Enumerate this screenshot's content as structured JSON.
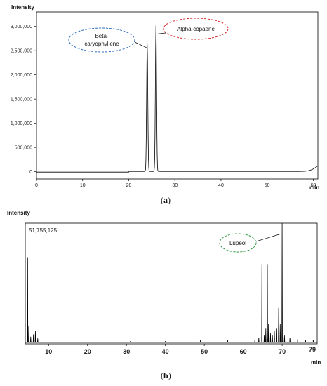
{
  "chart_data": [
    {
      "type": "line",
      "panel": "a",
      "caption_letter": "a",
      "ylabel": "Intensity",
      "xlabel": "min",
      "xlim": [
        0,
        61
      ],
      "ylim": [
        -150000,
        3300000
      ],
      "x_ticks": [
        0,
        10,
        20,
        30,
        40,
        50,
        60
      ],
      "y_ticks": [
        0,
        500000,
        1000000,
        1500000,
        2000000,
        2500000,
        3000000
      ],
      "y_tick_labels": [
        "0",
        "500,000",
        "1,000,000",
        "1,500,000",
        "2,000,000",
        "2,500,000",
        "3,000,000"
      ],
      "peaks": [
        {
          "time": 24.0,
          "intensity": 2650000
        },
        {
          "time": 25.9,
          "intensity": 3020000
        }
      ],
      "baseline": 0,
      "annotations": [
        {
          "text_lines": [
            "Beta-",
            "caryophyllene"
          ],
          "peak_index": 0,
          "color": "#2f6fbf"
        },
        {
          "text_lines": [
            "Alpha-copaene"
          ],
          "peak_index": 1,
          "color": "#d62a2a"
        }
      ]
    },
    {
      "type": "line",
      "panel": "b",
      "caption_letter": "b",
      "ylabel": "Intensity",
      "xlabel": "min",
      "max_label": "51,755,125",
      "xlim": [
        4,
        79
      ],
      "ylim": [
        0,
        51755125
      ],
      "x_ticks": [
        10,
        20,
        30,
        40,
        50,
        60,
        70,
        79
      ],
      "peaks": [
        {
          "time": 4.6,
          "intensity": 37000000
        },
        {
          "time": 4.9,
          "intensity": 7000000
        },
        {
          "time": 5.4,
          "intensity": 2500000
        },
        {
          "time": 6.1,
          "intensity": 3500000
        },
        {
          "time": 6.6,
          "intensity": 5000000
        },
        {
          "time": 7.2,
          "intensity": 1800000
        },
        {
          "time": 31.0,
          "intensity": 500000
        },
        {
          "time": 40.0,
          "intensity": 600000
        },
        {
          "time": 49.0,
          "intensity": 900000
        },
        {
          "time": 56.0,
          "intensity": 1000000
        },
        {
          "time": 63.0,
          "intensity": 1200000
        },
        {
          "time": 64.0,
          "intensity": 2000000
        },
        {
          "time": 64.8,
          "intensity": 34000000
        },
        {
          "time": 65.4,
          "intensity": 3000000
        },
        {
          "time": 65.8,
          "intensity": 6000000
        },
        {
          "time": 66.2,
          "intensity": 34000000
        },
        {
          "time": 66.5,
          "intensity": 8000000
        },
        {
          "time": 67.0,
          "intensity": 4000000
        },
        {
          "time": 67.5,
          "intensity": 3000000
        },
        {
          "time": 68.0,
          "intensity": 5000000
        },
        {
          "time": 68.6,
          "intensity": 6000000
        },
        {
          "time": 69.1,
          "intensity": 15000000
        },
        {
          "time": 69.5,
          "intensity": 8000000
        },
        {
          "time": 70.0,
          "intensity": 51755125
        },
        {
          "time": 70.6,
          "intensity": 3000000
        },
        {
          "time": 72.0,
          "intensity": 2000000
        },
        {
          "time": 74.0,
          "intensity": 1500000
        },
        {
          "time": 76.0,
          "intensity": 1200000
        },
        {
          "time": 78.0,
          "intensity": 1000000
        }
      ],
      "annotations": [
        {
          "text_lines": [
            "Lupeol"
          ],
          "peak_index": 23,
          "color": "#2e9a3e"
        }
      ]
    }
  ]
}
